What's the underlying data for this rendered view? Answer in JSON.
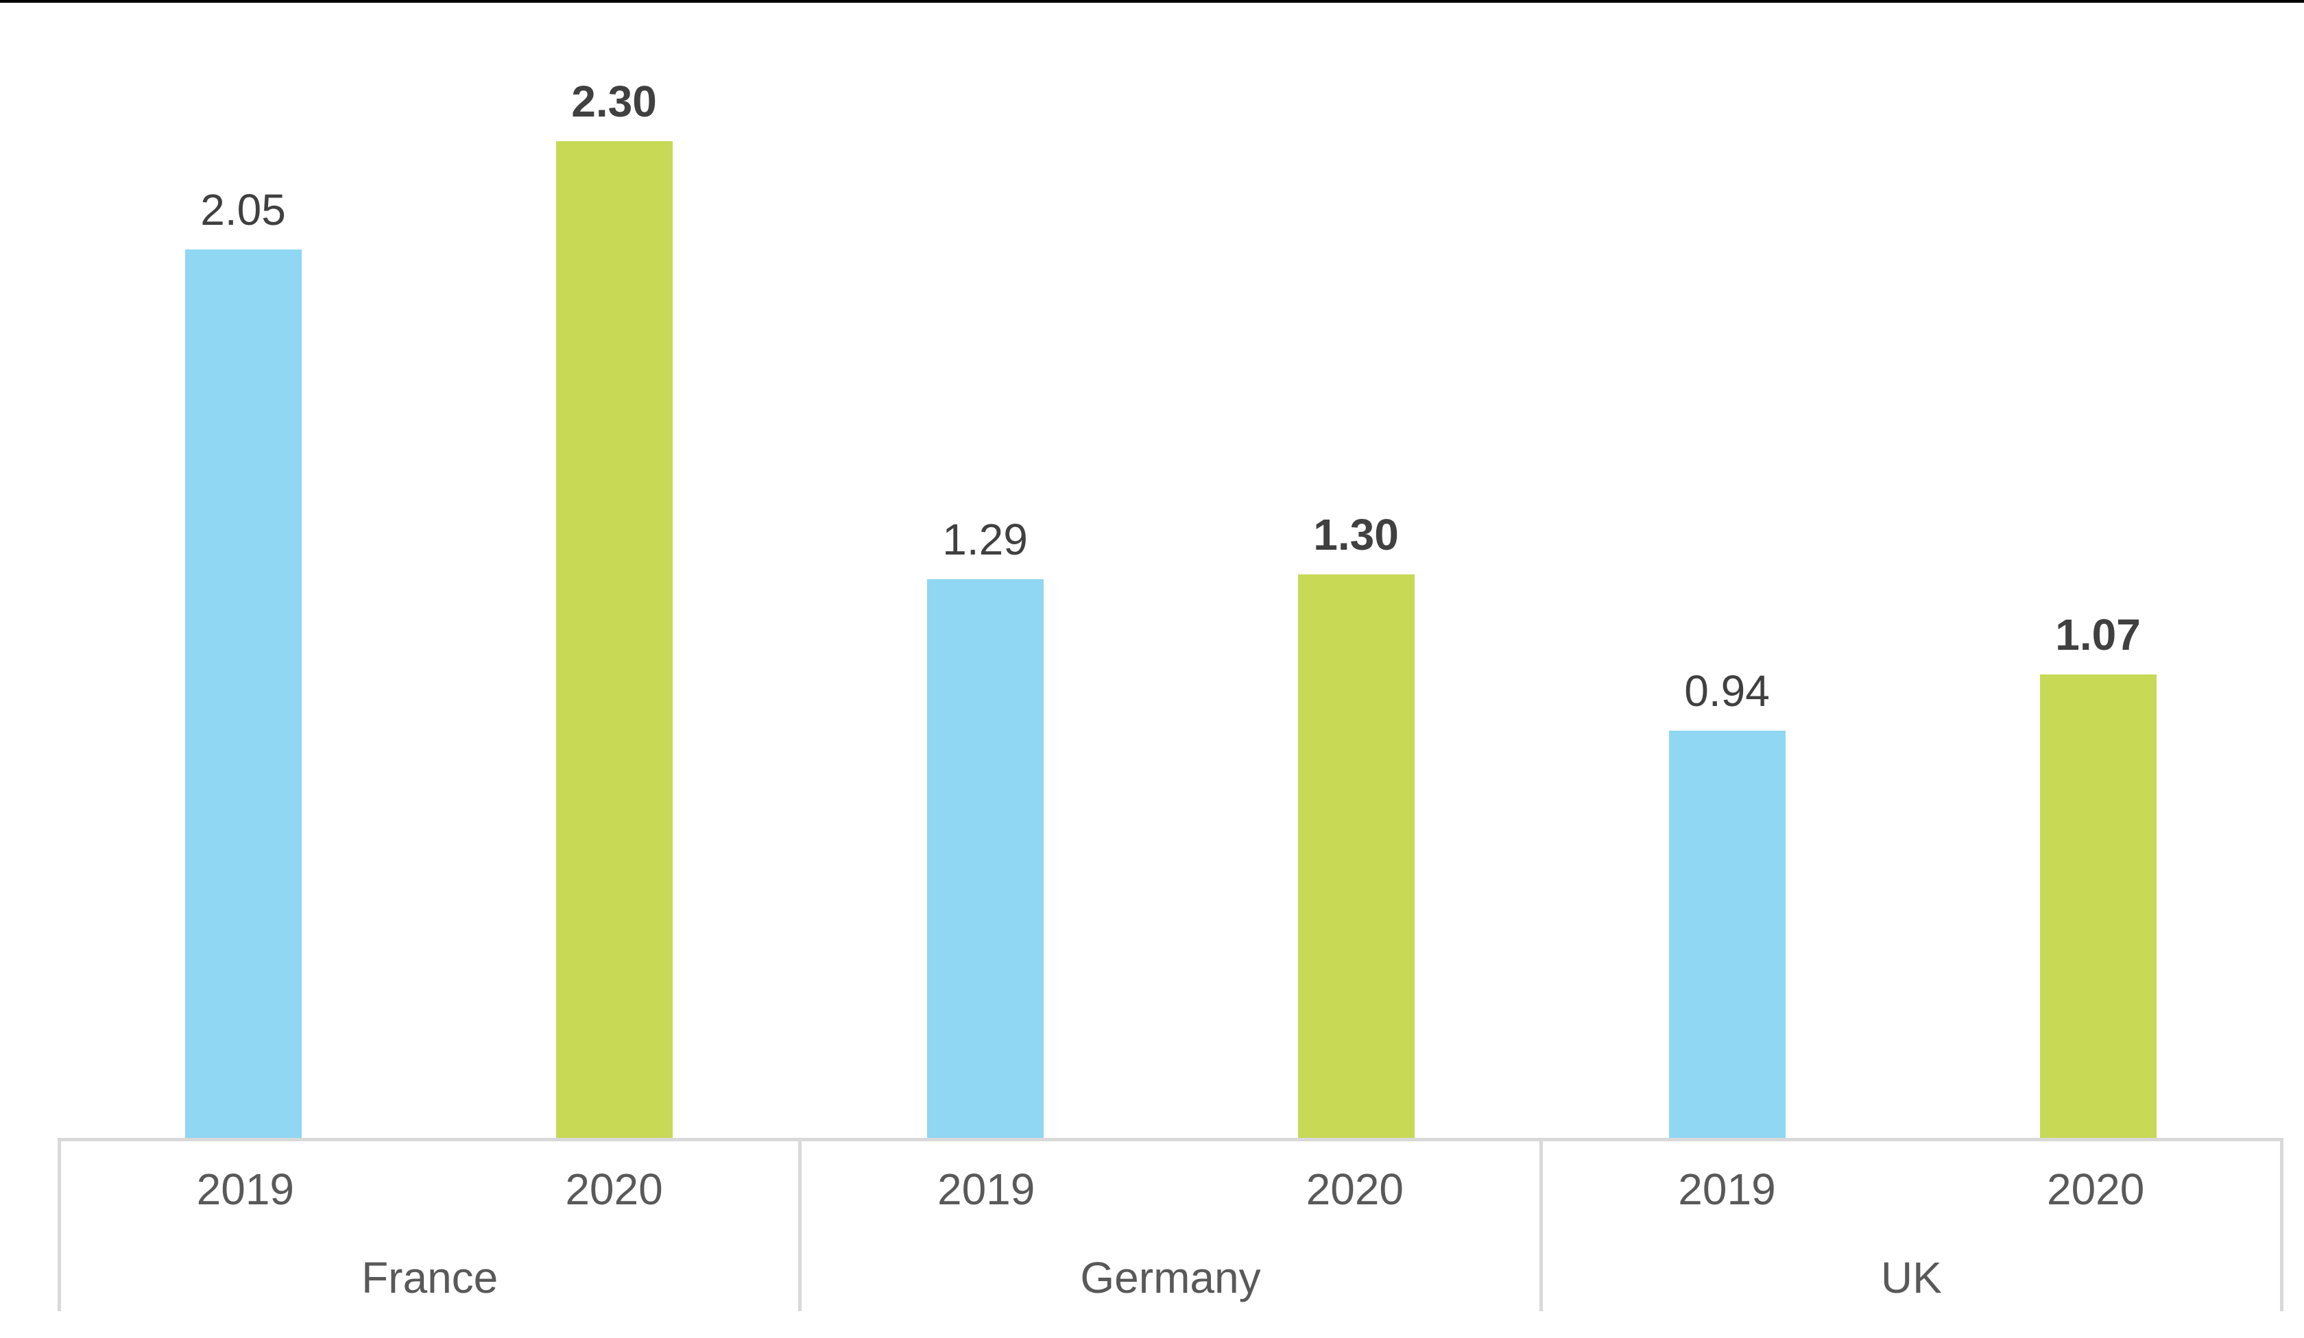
{
  "page": {
    "background_color": "#FFFFFF",
    "top_border_color": "#000000"
  },
  "chart_data": {
    "type": "bar",
    "title": "",
    "categories": [
      "France",
      "Germany",
      "UK"
    ],
    "x_sub_categories": [
      "2019",
      "2020"
    ],
    "series": [
      {
        "name": "2019",
        "color": "#8FD7F3",
        "values": [
          2.05,
          1.29,
          0.94
        ],
        "value_labels": [
          "2.05",
          "1.29",
          "0.94"
        ],
        "label_bold": false
      },
      {
        "name": "2020",
        "color": "#C7D955",
        "values": [
          2.3,
          1.3,
          1.07
        ],
        "value_labels": [
          "2.30",
          "1.30",
          "1.07"
        ],
        "label_bold": true
      }
    ],
    "ylim": [
      0,
      2.62
    ],
    "y_axis_visible": false,
    "grid": "off",
    "legend": "none",
    "axis_style": {
      "line_color": "#D9D9D9",
      "tick_label_color": "#595959",
      "value_label_color": "#404040"
    }
  }
}
